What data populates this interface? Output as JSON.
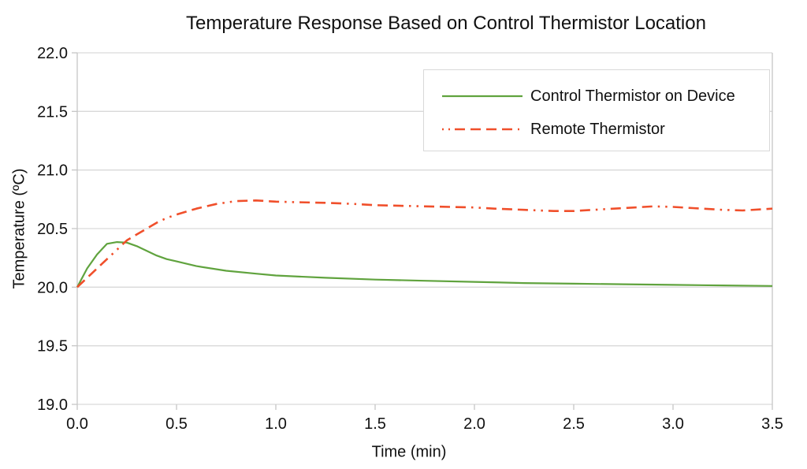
{
  "colors": {
    "background": "#ffffff",
    "gridline": "#d9d9d9",
    "axis": "#c6c6c6",
    "text": "#111111",
    "legend_border": "#d9d9d9",
    "series_green": "#60a33e",
    "series_red": "#f04f2b"
  },
  "chart_data": {
    "type": "line",
    "title": "Temperature Response Based on Control Thermistor Location",
    "xlabel": "Time (min)",
    "ylabel": "Temperature (ºC)",
    "xlim": [
      0,
      3.5
    ],
    "ylim": [
      19.0,
      22.0
    ],
    "x_ticks": [
      "0.0",
      "0.5",
      "1.0",
      "1.5",
      "2.0",
      "2.5",
      "3.0",
      "3.5"
    ],
    "y_ticks": [
      "19.0",
      "19.5",
      "20.0",
      "20.5",
      "21.0",
      "21.5",
      "22.0"
    ],
    "grid": "horizontal-only",
    "legend_position": "top-right",
    "series": [
      {
        "name": "Control Thermistor on Device",
        "color": "#60a33e",
        "style": "solid",
        "stroke_width": 2.2,
        "points": [
          [
            0,
            20.0
          ],
          [
            0.05,
            20.16
          ],
          [
            0.1,
            20.28
          ],
          [
            0.15,
            20.37
          ],
          [
            0.2,
            20.385
          ],
          [
            0.25,
            20.38
          ],
          [
            0.3,
            20.35
          ],
          [
            0.35,
            20.31
          ],
          [
            0.4,
            20.27
          ],
          [
            0.45,
            20.24
          ],
          [
            0.5,
            20.22
          ],
          [
            0.6,
            20.18
          ],
          [
            0.75,
            20.14
          ],
          [
            0.9,
            20.115
          ],
          [
            1.0,
            20.1
          ],
          [
            1.25,
            20.08
          ],
          [
            1.5,
            20.065
          ],
          [
            1.75,
            20.055
          ],
          [
            2.0,
            20.045
          ],
          [
            2.25,
            20.035
          ],
          [
            2.5,
            20.03
          ],
          [
            2.75,
            20.025
          ],
          [
            3.0,
            20.02
          ],
          [
            3.25,
            20.015
          ],
          [
            3.5,
            20.01
          ]
        ]
      },
      {
        "name": "Remote Thermistor",
        "color": "#f04f2b",
        "style": "dash-dash-dash-dot-dot",
        "stroke_width": 2.6,
        "points": [
          [
            0,
            20.0
          ],
          [
            0.05,
            20.08
          ],
          [
            0.1,
            20.16
          ],
          [
            0.15,
            20.24
          ],
          [
            0.2,
            20.32
          ],
          [
            0.25,
            20.4
          ],
          [
            0.3,
            20.45
          ],
          [
            0.35,
            20.5
          ],
          [
            0.4,
            20.55
          ],
          [
            0.45,
            20.59
          ],
          [
            0.5,
            20.62
          ],
          [
            0.6,
            20.67
          ],
          [
            0.7,
            20.71
          ],
          [
            0.8,
            20.735
          ],
          [
            0.9,
            20.74
          ],
          [
            1.0,
            20.73
          ],
          [
            1.1,
            20.725
          ],
          [
            1.25,
            20.72
          ],
          [
            1.4,
            20.71
          ],
          [
            1.5,
            20.7
          ],
          [
            1.75,
            20.69
          ],
          [
            2.0,
            20.68
          ],
          [
            2.1,
            20.67
          ],
          [
            2.25,
            20.66
          ],
          [
            2.4,
            20.65
          ],
          [
            2.5,
            20.65
          ],
          [
            2.6,
            20.66
          ],
          [
            2.75,
            20.675
          ],
          [
            2.9,
            20.69
          ],
          [
            3.0,
            20.685
          ],
          [
            3.1,
            20.675
          ],
          [
            3.25,
            20.66
          ],
          [
            3.35,
            20.655
          ],
          [
            3.5,
            20.67
          ]
        ]
      }
    ]
  }
}
